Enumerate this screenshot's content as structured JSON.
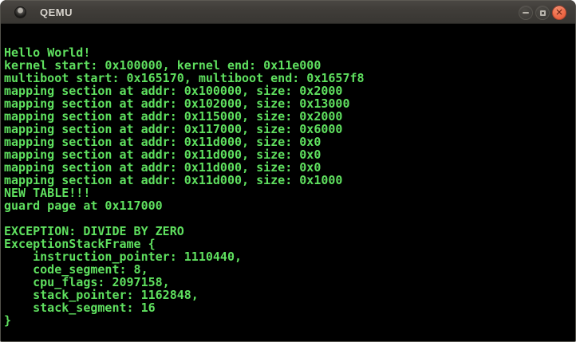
{
  "window": {
    "title": "QEMU",
    "titlebar": {
      "icon": "qemu-window-icon",
      "buttons": [
        {
          "name": "minimize",
          "label": "Minimize"
        },
        {
          "name": "maximize",
          "label": "Maximize"
        },
        {
          "name": "close",
          "label": "Close",
          "glyph": "✕"
        }
      ]
    },
    "colors": {
      "titlebar_bg": "#403d39",
      "title_text": "#dbd7d0",
      "close_button": "#ed6a48",
      "terminal_bg": "#000000",
      "terminal_text": "#5fe05f",
      "window_border": "#54524c"
    }
  },
  "terminal": {
    "lines": [
      "Hello World!",
      "kernel start: 0x100000, kernel end: 0x11e000",
      "multiboot start: 0x165170, multiboot end: 0x1657f8",
      "mapping section at addr: 0x100000, size: 0x2000",
      "mapping section at addr: 0x102000, size: 0x13000",
      "mapping section at addr: 0x115000, size: 0x2000",
      "mapping section at addr: 0x117000, size: 0x6000",
      "mapping section at addr: 0x11d000, size: 0x0",
      "mapping section at addr: 0x11d000, size: 0x0",
      "mapping section at addr: 0x11d000, size: 0x0",
      "mapping section at addr: 0x11d000, size: 0x1000",
      "NEW TABLE!!!",
      "guard page at 0x117000",
      "",
      "EXCEPTION: DIVIDE BY ZERO",
      "ExceptionStackFrame {",
      "    instruction_pointer: 1110440,",
      "    code_segment: 8,",
      "    cpu_flags: 2097158,",
      "    stack_pointer: 1162848,",
      "    stack_segment: 16",
      "}"
    ]
  }
}
